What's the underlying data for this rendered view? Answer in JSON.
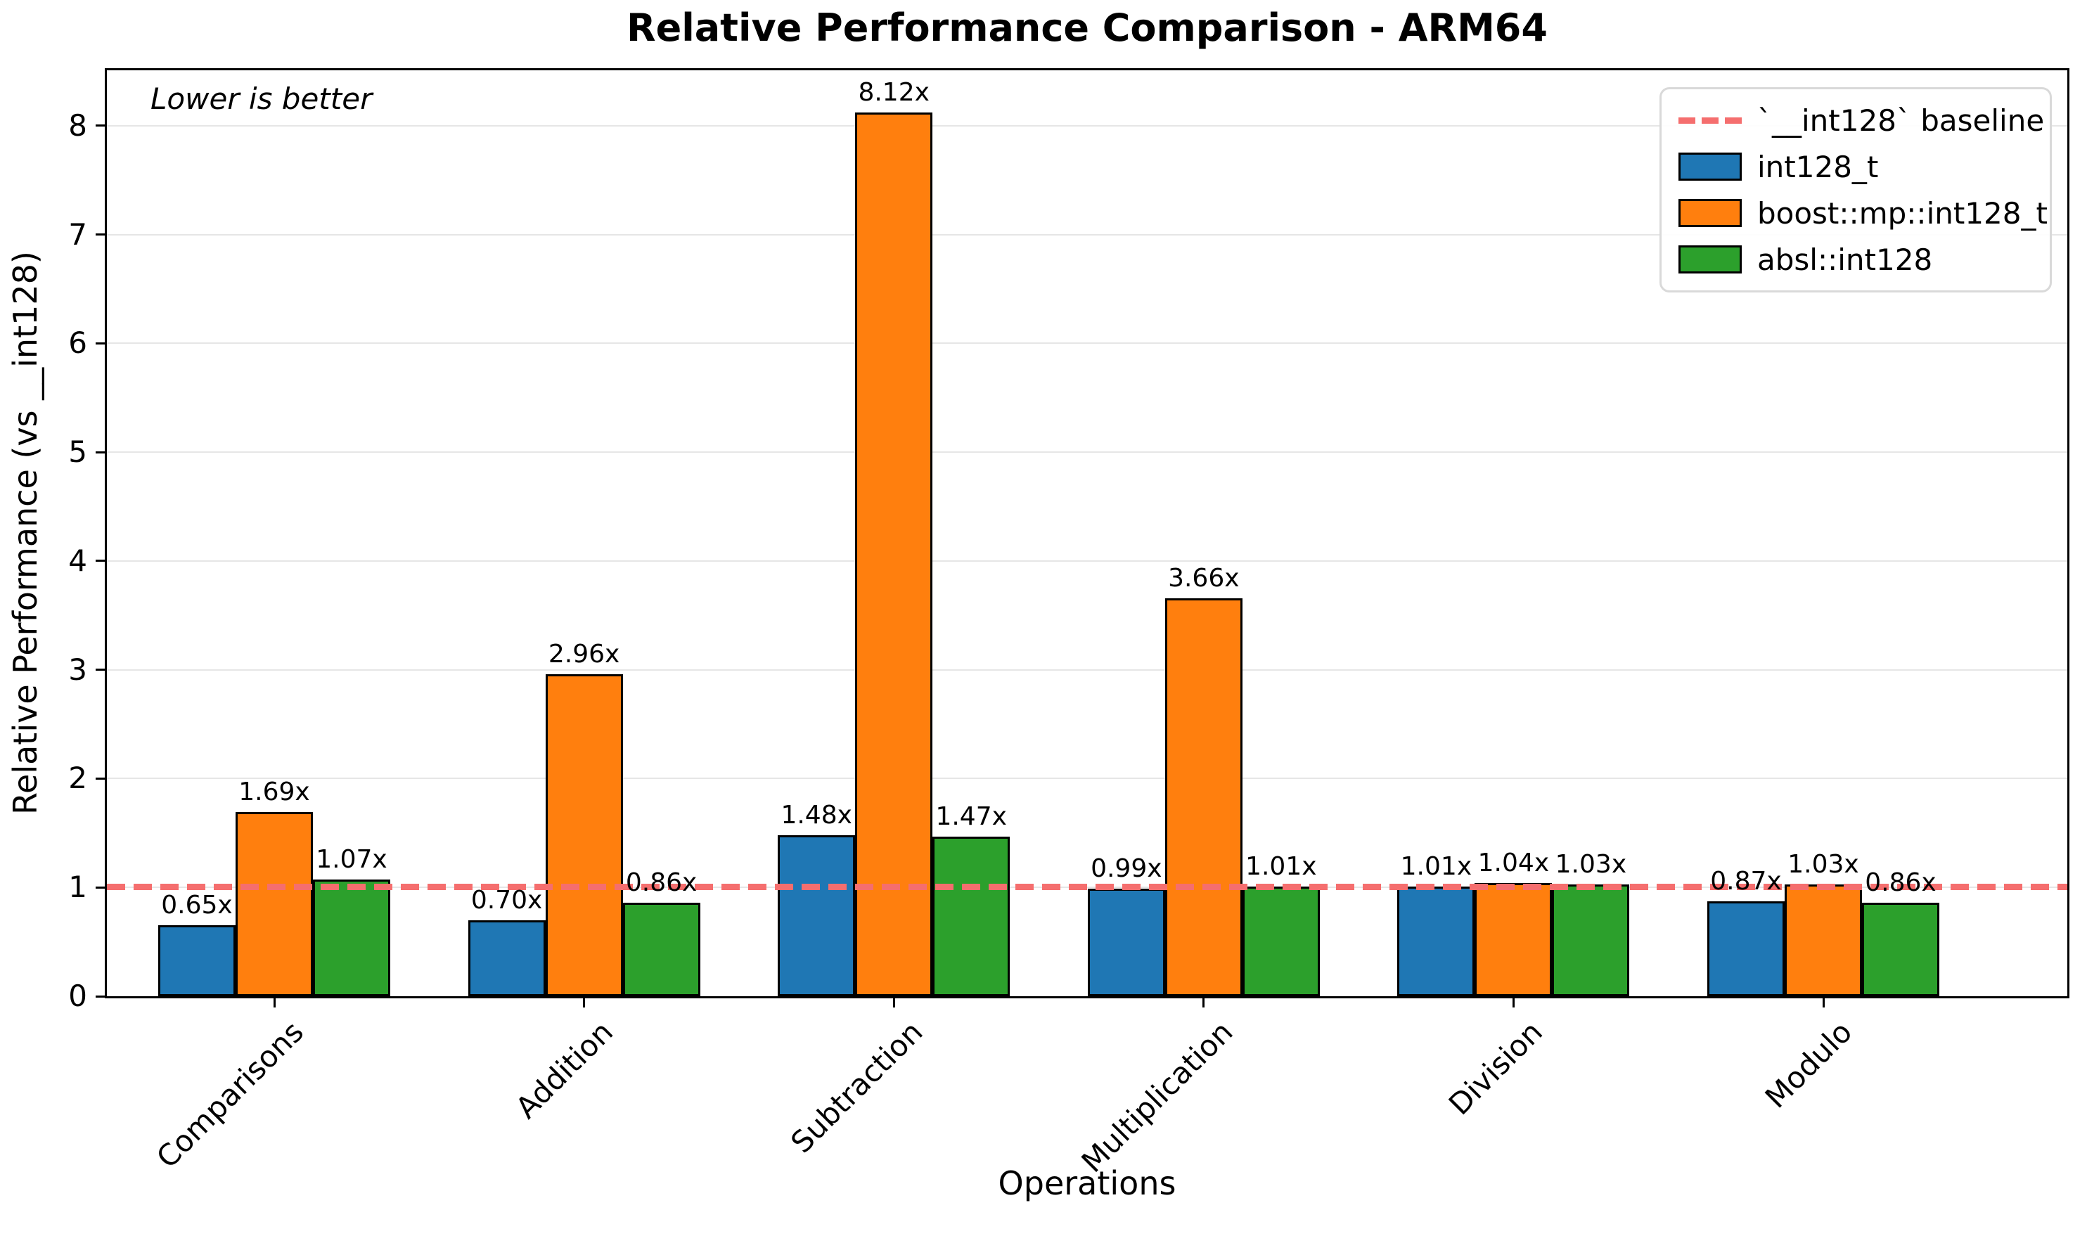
{
  "chart_data": {
    "type": "bar",
    "title": "Relative Performance Comparison - ARM64",
    "xlabel": "Operations",
    "ylabel": "Relative Performance (vs __int128)",
    "annotation": "Lower is better",
    "categories": [
      "Comparisons",
      "Addition",
      "Subtraction",
      "Multiplication",
      "Division",
      "Modulo"
    ],
    "series": [
      {
        "name": "int128_t",
        "color": "#1f77b4",
        "values": [
          0.65,
          0.7,
          1.48,
          0.99,
          1.01,
          0.87
        ],
        "labels": [
          "0.65x",
          "0.70x",
          "1.48x",
          "0.99x",
          "1.01x",
          "0.87x"
        ]
      },
      {
        "name": "boost::mp::int128_t",
        "color": "#ff7f0e",
        "values": [
          1.69,
          2.96,
          8.12,
          3.66,
          1.04,
          1.03
        ],
        "labels": [
          "1.69x",
          "2.96x",
          "8.12x",
          "3.66x",
          "1.04x",
          "1.03x"
        ]
      },
      {
        "name": "absl::int128",
        "color": "#2ca02c",
        "values": [
          1.07,
          0.86,
          1.47,
          1.01,
          1.03,
          0.86
        ],
        "labels": [
          "1.07x",
          "0.86x",
          "1.47x",
          "1.01x",
          "1.03x",
          "0.86x"
        ]
      }
    ],
    "baseline": {
      "value": 1,
      "label": "`__int128` baseline",
      "color": "#f56e6e"
    },
    "ylim": [
      0,
      8.51
    ],
    "yticks": [
      "0",
      "1",
      "2",
      "3",
      "4",
      "5",
      "6",
      "7",
      "8"
    ],
    "grid": true,
    "legend_position": "upper right"
  }
}
